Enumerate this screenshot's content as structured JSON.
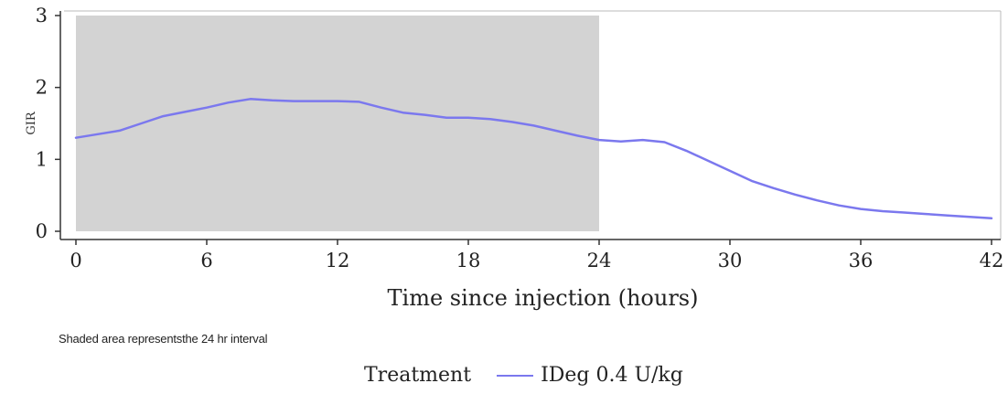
{
  "chart_data": {
    "type": "line",
    "title": "",
    "xlabel": "Time since injection (hours)",
    "ylabel": "GIR",
    "xlim": [
      0,
      42
    ],
    "ylim": [
      0,
      3
    ],
    "xticks": [
      0,
      6,
      12,
      18,
      24,
      30,
      36,
      42
    ],
    "yticks": [
      0,
      1,
      2,
      3
    ],
    "shaded_region": {
      "x": [
        0,
        24
      ],
      "y": [
        0,
        3
      ],
      "color": "#d3d3d3"
    },
    "series": [
      {
        "name": "IDeg 0.4 U/kg",
        "color": "#7b78ee",
        "x": [
          0,
          1,
          2,
          3,
          4,
          5,
          6,
          7,
          8,
          9,
          10,
          11,
          12,
          13,
          14,
          15,
          16,
          17,
          18,
          19,
          20,
          21,
          22,
          23,
          24,
          25,
          26,
          27,
          28,
          29,
          30,
          31,
          32,
          33,
          34,
          35,
          36,
          37,
          38,
          39,
          40,
          41,
          42
        ],
        "y": [
          1.3,
          1.35,
          1.4,
          1.5,
          1.6,
          1.66,
          1.72,
          1.79,
          1.84,
          1.82,
          1.81,
          1.81,
          1.81,
          1.8,
          1.72,
          1.65,
          1.62,
          1.58,
          1.58,
          1.56,
          1.52,
          1.47,
          1.4,
          1.33,
          1.27,
          1.25,
          1.27,
          1.24,
          1.12,
          0.98,
          0.84,
          0.7,
          0.6,
          0.51,
          0.43,
          0.36,
          0.31,
          0.28,
          0.26,
          0.24,
          0.22,
          0.2,
          0.18
        ]
      }
    ]
  },
  "footnote": "Shaded area representsthe 24 hr interval",
  "legend": {
    "title": "Treatment",
    "entries": [
      "IDeg 0.4 U/kg"
    ]
  }
}
